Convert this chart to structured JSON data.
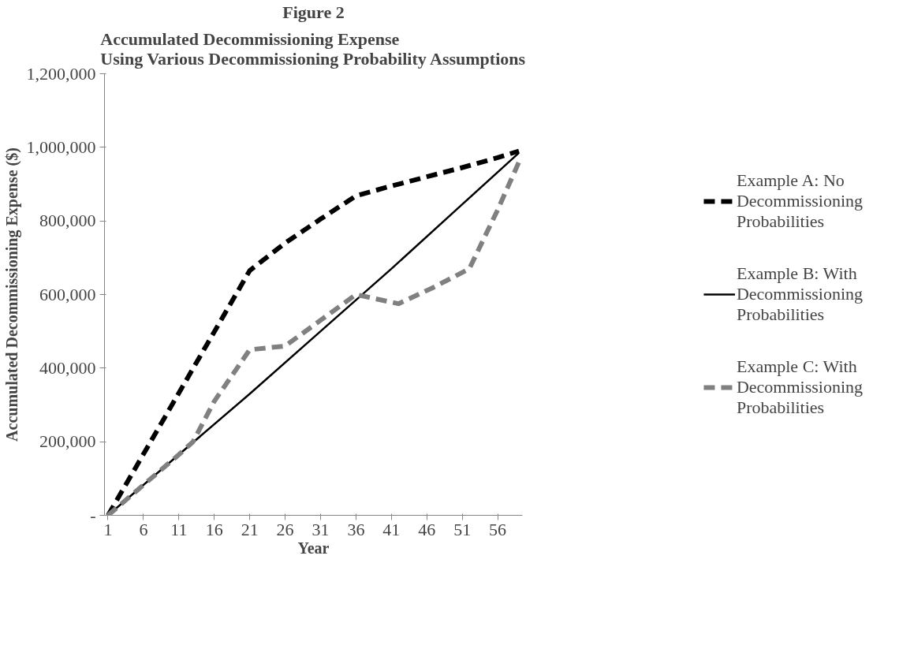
{
  "chart_data": {
    "type": "line",
    "title": "Figure 2",
    "subtitle": "Accumulated Decommissioning Expense\nUsing Various Decommissioning Probability Assumptions",
    "xlabel": "Year",
    "ylabel": "Accumulated Decommissioning Expense ($)",
    "xlim": [
      0.5,
      59.5
    ],
    "xticks": [
      1,
      6,
      11,
      16,
      21,
      26,
      31,
      36,
      41,
      46,
      51,
      56
    ],
    "ylim": [
      0,
      1200000
    ],
    "yticks": [
      {
        "value": 0,
        "label": "-"
      },
      {
        "value": 200000,
        "label": "200,000"
      },
      {
        "value": 400000,
        "label": "400,000"
      },
      {
        "value": 600000,
        "label": "600,000"
      },
      {
        "value": 800000,
        "label": "800,000"
      },
      {
        "value": 1000000,
        "label": "1,000,000"
      },
      {
        "value": 1200000,
        "label": "1,200,000"
      }
    ],
    "grid": false,
    "legend": "right",
    "marker": "none",
    "series": [
      {
        "name": "Example A: No Decommissioning Probabilities",
        "color": "#000000",
        "line_style": "dashed",
        "x": [
          1,
          21,
          26,
          31,
          36,
          41,
          46,
          51,
          56,
          59
        ],
        "values": [
          0,
          665000,
          740000,
          805000,
          868000,
          895000,
          920000,
          945000,
          972000,
          990000
        ]
      },
      {
        "name": "Example B: With Decommissioning Probabilities",
        "color": "#000000",
        "line_style": "solid",
        "x": [
          1,
          11,
          21,
          31,
          41,
          51,
          59
        ],
        "values": [
          0,
          165000,
          330000,
          500000,
          670000,
          845000,
          985000
        ]
      },
      {
        "name": "Example C: With Decommissioning Probabilities",
        "color": "#808080",
        "line_style": "dashed",
        "x": [
          1,
          11,
          13,
          16,
          21,
          26,
          31,
          36,
          42,
          47,
          52,
          56,
          59
        ],
        "values": [
          0,
          165000,
          200000,
          310000,
          450000,
          460000,
          530000,
          600000,
          575000,
          620000,
          670000,
          830000,
          960000
        ]
      }
    ]
  }
}
